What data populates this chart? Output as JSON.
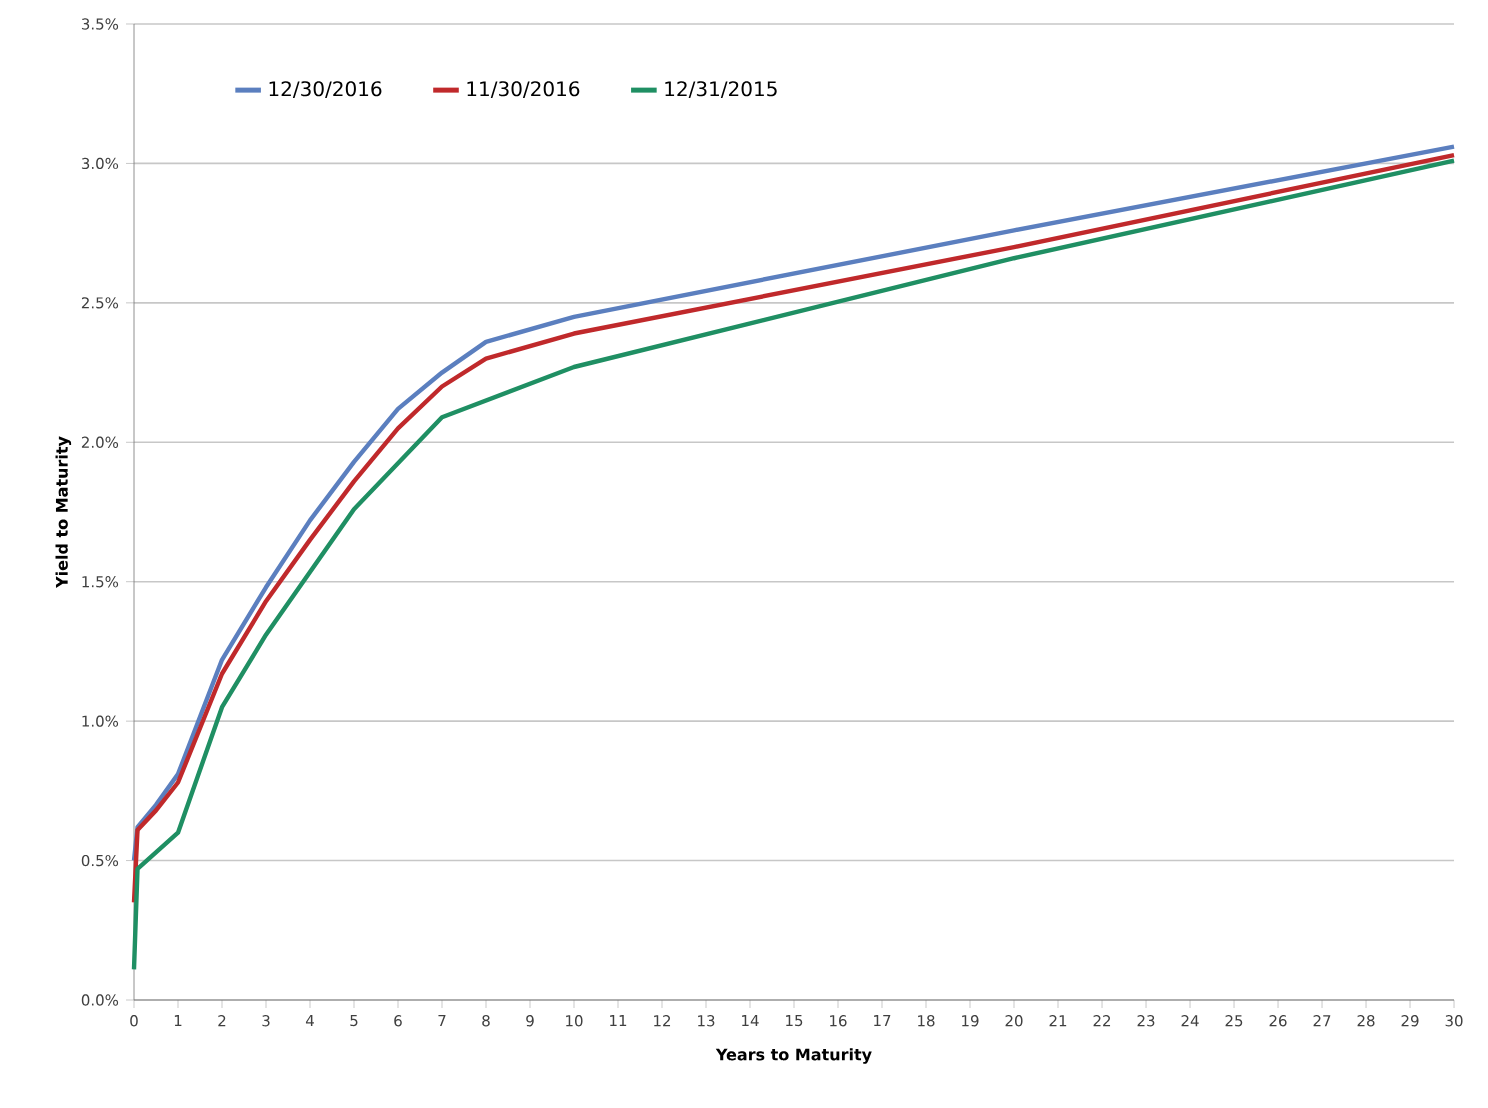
{
  "chart_data": {
    "type": "line",
    "xlabel": "Years to Maturity",
    "ylabel": "Yield to Maturity",
    "xlim": [
      0,
      30
    ],
    "xticks": [
      0,
      1,
      2,
      3,
      4,
      5,
      6,
      7,
      8,
      9,
      10,
      11,
      12,
      13,
      14,
      15,
      16,
      17,
      18,
      19,
      20,
      21,
      22,
      23,
      24,
      25,
      26,
      27,
      28,
      29,
      30
    ],
    "ylim": [
      0,
      3.5
    ],
    "yticks": [
      {
        "value": 0,
        "label": "0.0%"
      },
      {
        "value": 0.5,
        "label": "0.5%"
      },
      {
        "value": 1,
        "label": "1.0%"
      },
      {
        "value": 1.5,
        "label": "1.5%"
      },
      {
        "value": 2,
        "label": "2.0%"
      },
      {
        "value": 2.5,
        "label": "2.5%"
      },
      {
        "value": 3,
        "label": "3.0%"
      },
      {
        "value": 3.5,
        "label": "3.5%"
      }
    ],
    "grid": "y",
    "legend": "top left",
    "marker": "none",
    "line_style": "solid",
    "series": [
      {
        "name": "12/30/2016",
        "color": "#5b7fbf",
        "x": [
          0,
          0.08,
          0.5,
          1,
          2,
          3,
          4,
          5,
          6,
          7,
          8,
          10,
          20,
          30
        ],
        "values": [
          0.5,
          0.62,
          0.7,
          0.81,
          1.22,
          1.48,
          1.72,
          1.93,
          2.12,
          2.25,
          2.36,
          2.45,
          2.76,
          3.06
        ]
      },
      {
        "name": "11/30/2016",
        "color": "#c0292b",
        "x": [
          0,
          0.08,
          0.5,
          1,
          2,
          3,
          4,
          5,
          6,
          7,
          8,
          10,
          20,
          30
        ],
        "values": [
          0.35,
          0.61,
          0.68,
          0.78,
          1.17,
          1.43,
          1.65,
          1.86,
          2.05,
          2.2,
          2.3,
          2.39,
          2.7,
          3.03
        ]
      },
      {
        "name": "12/31/2015",
        "color": "#1f8f63",
        "x": [
          0,
          0.08,
          1,
          2,
          3,
          5,
          7,
          10,
          20,
          30
        ],
        "values": [
          0.11,
          0.47,
          0.6,
          1.05,
          1.31,
          1.76,
          2.09,
          2.27,
          2.66,
          3.01
        ]
      }
    ]
  }
}
